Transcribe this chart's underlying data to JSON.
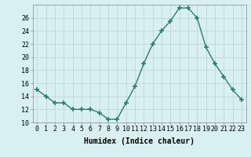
{
  "x": [
    0,
    1,
    2,
    3,
    4,
    5,
    6,
    7,
    8,
    9,
    10,
    11,
    12,
    13,
    14,
    15,
    16,
    17,
    18,
    19,
    20,
    21,
    22,
    23
  ],
  "y": [
    15,
    14,
    13,
    13,
    12,
    12,
    12,
    11.5,
    10.5,
    10.5,
    13,
    15.5,
    19,
    22,
    24,
    25.5,
    27.5,
    27.5,
    26,
    21.5,
    19,
    17,
    15,
    13.5
  ],
  "line_color": "#2d7d6e",
  "marker": "+",
  "marker_size": 4,
  "bg_color": "#d8f0f0",
  "grid_color": "#c0d8d8",
  "xlabel": "Humidex (Indice chaleur)",
  "xlim": [
    -0.5,
    23.5
  ],
  "ylim": [
    10,
    28
  ],
  "yticks": [
    10,
    12,
    14,
    16,
    18,
    20,
    22,
    24,
    26
  ],
  "xtick_labels": [
    "0",
    "1",
    "2",
    "3",
    "4",
    "5",
    "6",
    "7",
    "8",
    "9",
    "10",
    "11",
    "12",
    "13",
    "14",
    "15",
    "16",
    "17",
    "18",
    "19",
    "20",
    "21",
    "22",
    "23"
  ],
  "xlabel_fontsize": 7,
  "tick_fontsize": 6,
  "linewidth": 1.0,
  "marker_lw": 1.2
}
